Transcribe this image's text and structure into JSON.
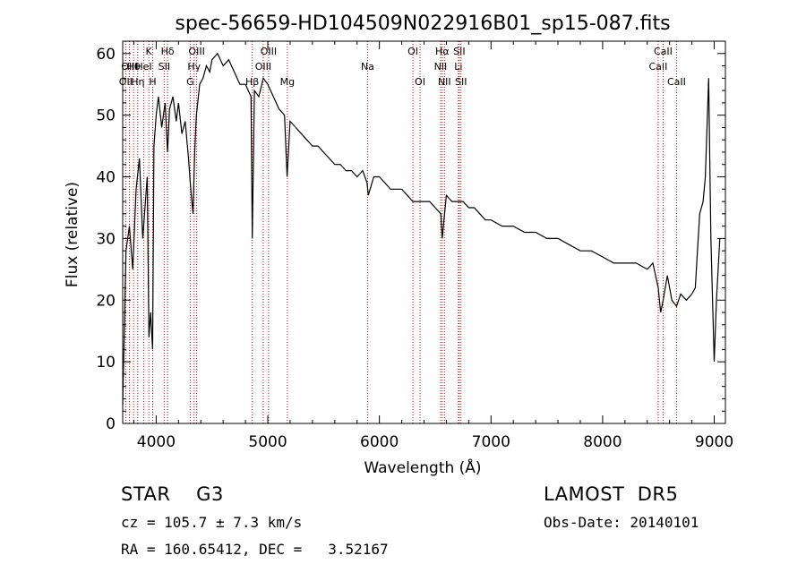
{
  "chart_data": {
    "type": "line",
    "title": "spec-56659-HD104509N022916B01_sp15-087.fits",
    "xlabel": "Wavelength (Å)",
    "ylabel": "Flux (relative)",
    "xlim": [
      3700,
      9100
    ],
    "ylim": [
      0,
      62
    ],
    "xticks": [
      4000,
      5000,
      6000,
      7000,
      8000,
      9000
    ],
    "yticks": [
      0,
      10,
      20,
      30,
      40,
      50,
      60
    ],
    "grid": false,
    "line_color": "#000000",
    "marker_color": "#cc0000",
    "spectrum": {
      "x": [
        3700,
        3730,
        3760,
        3790,
        3820,
        3850,
        3880,
        3900,
        3920,
        3935,
        3950,
        3968,
        3980,
        4000,
        4020,
        4050,
        4080,
        4102,
        4120,
        4150,
        4180,
        4200,
        4230,
        4260,
        4290,
        4310,
        4330,
        4345,
        4360,
        4390,
        4420,
        4450,
        4480,
        4500,
        4550,
        4600,
        4650,
        4700,
        4750,
        4800,
        4850,
        4861,
        4880,
        4920,
        4960,
        5000,
        5050,
        5100,
        5150,
        5173,
        5200,
        5250,
        5300,
        5350,
        5400,
        5450,
        5500,
        5550,
        5600,
        5650,
        5700,
        5750,
        5800,
        5850,
        5890,
        5900,
        5950,
        6000,
        6050,
        6100,
        6150,
        6200,
        6250,
        6300,
        6350,
        6400,
        6450,
        6500,
        6550,
        6563,
        6600,
        6650,
        6700,
        6750,
        6800,
        6850,
        6900,
        6950,
        7000,
        7100,
        7200,
        7300,
        7400,
        7500,
        7600,
        7700,
        7800,
        7900,
        8000,
        8100,
        8200,
        8300,
        8400,
        8450,
        8498,
        8520,
        8542,
        8580,
        8620,
        8662,
        8700,
        8750,
        8800,
        8830,
        8850,
        8870,
        8900,
        8920,
        8950,
        8970,
        9000,
        9020,
        9050
      ],
      "y": [
        3,
        28,
        32,
        25,
        38,
        43,
        30,
        35,
        40,
        14,
        18,
        12,
        45,
        50,
        53,
        48,
        52,
        44,
        51,
        53,
        49,
        52,
        47,
        49,
        43,
        38,
        34,
        44,
        50,
        55,
        56,
        58,
        57,
        59,
        60,
        58,
        59,
        57,
        55,
        55,
        53,
        30,
        54,
        53,
        56,
        55,
        53,
        51,
        50,
        40,
        49,
        48,
        47,
        46,
        45,
        45,
        44,
        43,
        42,
        42,
        41,
        41,
        40,
        41,
        39,
        37,
        40,
        40,
        39,
        38,
        38,
        38,
        37,
        36,
        36,
        36,
        36,
        35,
        34,
        30,
        37,
        36,
        36,
        36,
        35,
        35,
        34,
        33,
        33,
        32,
        32,
        31,
        31,
        30,
        30,
        29,
        28,
        28,
        27,
        26,
        26,
        26,
        25,
        26,
        22,
        18,
        20,
        24,
        20,
        19,
        21,
        20,
        21,
        22,
        28,
        34,
        36,
        40,
        56,
        30,
        10,
        20,
        30
      ]
    },
    "lines": [
      {
        "label": "OII",
        "x": 3727,
        "row": 2
      },
      {
        "label": "Hθ",
        "x": 3797,
        "row": 1
      },
      {
        "label": "OIII",
        "x": 3760,
        "row": 1
      },
      {
        "label": "HeI",
        "x": 3889,
        "row": 1
      },
      {
        "label": "Hη",
        "x": 3835,
        "row": 2
      },
      {
        "label": "K",
        "x": 3934,
        "row": 0
      },
      {
        "label": "H",
        "x": 3969,
        "row": 2
      },
      {
        "label": "SII",
        "x": 4072,
        "row": 1
      },
      {
        "label": "Hδ",
        "x": 4102,
        "row": 0
      },
      {
        "label": "G",
        "x": 4305,
        "row": 2
      },
      {
        "label": "Hγ",
        "x": 4340,
        "row": 1
      },
      {
        "label": "OIII",
        "x": 4363,
        "row": 0
      },
      {
        "label": "Hβ",
        "x": 4861,
        "row": 2
      },
      {
        "label": "OIII",
        "x": 4959,
        "row": 1
      },
      {
        "label": "OIII",
        "x": 5007,
        "row": 0
      },
      {
        "label": "Mg",
        "x": 5175,
        "row": 2
      },
      {
        "label": "Na",
        "x": 5894,
        "row": 1
      },
      {
        "label": "OI",
        "x": 6300,
        "row": 0
      },
      {
        "label": "OI",
        "x": 6364,
        "row": 2
      },
      {
        "label": "NII",
        "x": 6548,
        "row": 1
      },
      {
        "label": "Hα",
        "x": 6563,
        "row": 0
      },
      {
        "label": "NII",
        "x": 6583,
        "row": 2
      },
      {
        "label": "Li",
        "x": 6708,
        "row": 1
      },
      {
        "label": "SII",
        "x": 6716,
        "row": 0
      },
      {
        "label": "SII",
        "x": 6731,
        "row": 2
      },
      {
        "label": "CaII",
        "x": 8498,
        "row": 1
      },
      {
        "label": "CaII",
        "x": 8542,
        "row": 0
      },
      {
        "label": "CaII",
        "x": 8662,
        "row": 2
      }
    ]
  },
  "info": {
    "class_line": "STAR    G3",
    "survey": "LAMOST  DR5",
    "cz": "cz = 105.7 ± 7.3 km/s",
    "obs_date": "Obs-Date: 20140101",
    "coords": "RA = 160.65412, DEC =   3.52167"
  }
}
